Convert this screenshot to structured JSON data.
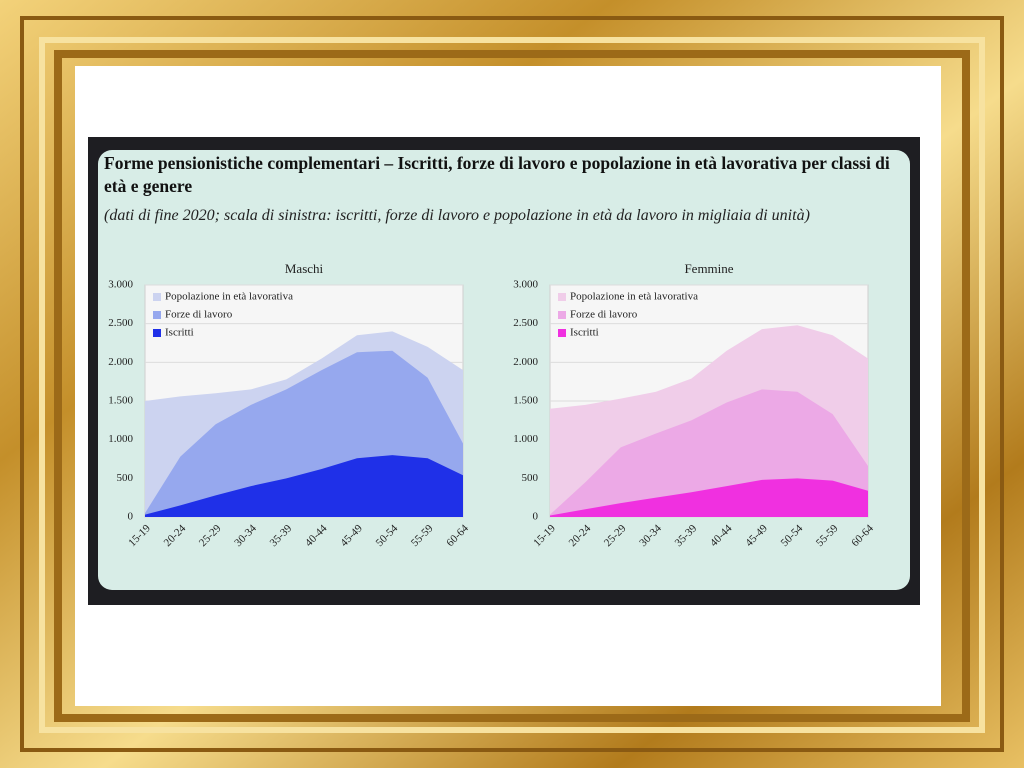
{
  "title": "Forme pensionistiche complementari – Iscritti, forze di lavoro e popolazione in età lavorativa per classi di età e genere",
  "subtitle": "(dati di fine 2020; scala di sinistra: iscritti, forze di lavoro e popolazione in età da lavoro in migliaia di unità)",
  "chart_data": [
    {
      "type": "area",
      "title": "Maschi",
      "categories": [
        "15-19",
        "20-24",
        "25-29",
        "30-34",
        "35-39",
        "40-44",
        "45-49",
        "50-54",
        "55-59",
        "60-64"
      ],
      "series": [
        {
          "name": "Popolazione in età lavorativa",
          "color": "#ccd3f0",
          "values": [
            1500,
            1560,
            1600,
            1650,
            1780,
            2050,
            2350,
            2400,
            2200,
            1900
          ]
        },
        {
          "name": "Forze di lavoro",
          "color": "#96a8ee",
          "values": [
            50,
            780,
            1200,
            1450,
            1650,
            1900,
            2130,
            2150,
            1800,
            950
          ]
        },
        {
          "name": "Iscritti",
          "color": "#1f30e8",
          "values": [
            30,
            150,
            280,
            400,
            500,
            620,
            760,
            800,
            760,
            540
          ]
        }
      ],
      "ylim": [
        0,
        3000
      ],
      "yticks": [
        0,
        500,
        {
          "value": 1000,
          "label": "1.000"
        },
        {
          "value": 1500,
          "label": "1.500"
        },
        {
          "value": 2000,
          "label": "2.000"
        },
        {
          "value": 2500,
          "label": "2.500"
        },
        {
          "value": 3000,
          "label": "3.000"
        }
      ],
      "grid": true
    },
    {
      "type": "area",
      "title": "Femmine",
      "categories": [
        "15-19",
        "20-24",
        "25-29",
        "30-34",
        "35-39",
        "40-44",
        "45-49",
        "50-54",
        "55-59",
        "60-64"
      ],
      "series": [
        {
          "name": "Popolazione in età lavorativa",
          "color": "#f0cde9",
          "values": [
            1400,
            1450,
            1530,
            1620,
            1790,
            2150,
            2430,
            2480,
            2350,
            2050
          ]
        },
        {
          "name": "Forze di lavoro",
          "color": "#eca9e6",
          "values": [
            30,
            450,
            900,
            1080,
            1250,
            1480,
            1650,
            1620,
            1330,
            660
          ]
        },
        {
          "name": "Iscritti",
          "color": "#f030e0",
          "values": [
            20,
            100,
            180,
            250,
            320,
            400,
            480,
            500,
            470,
            340
          ]
        }
      ],
      "ylim": [
        0,
        3000
      ],
      "yticks": [
        0,
        500,
        {
          "value": 1000,
          "label": "1.000"
        },
        {
          "value": 1500,
          "label": "1.500"
        },
        {
          "value": 2000,
          "label": "2.000"
        },
        {
          "value": 2500,
          "label": "2.500"
        },
        {
          "value": 3000,
          "label": "3.000"
        }
      ],
      "grid": true
    }
  ]
}
